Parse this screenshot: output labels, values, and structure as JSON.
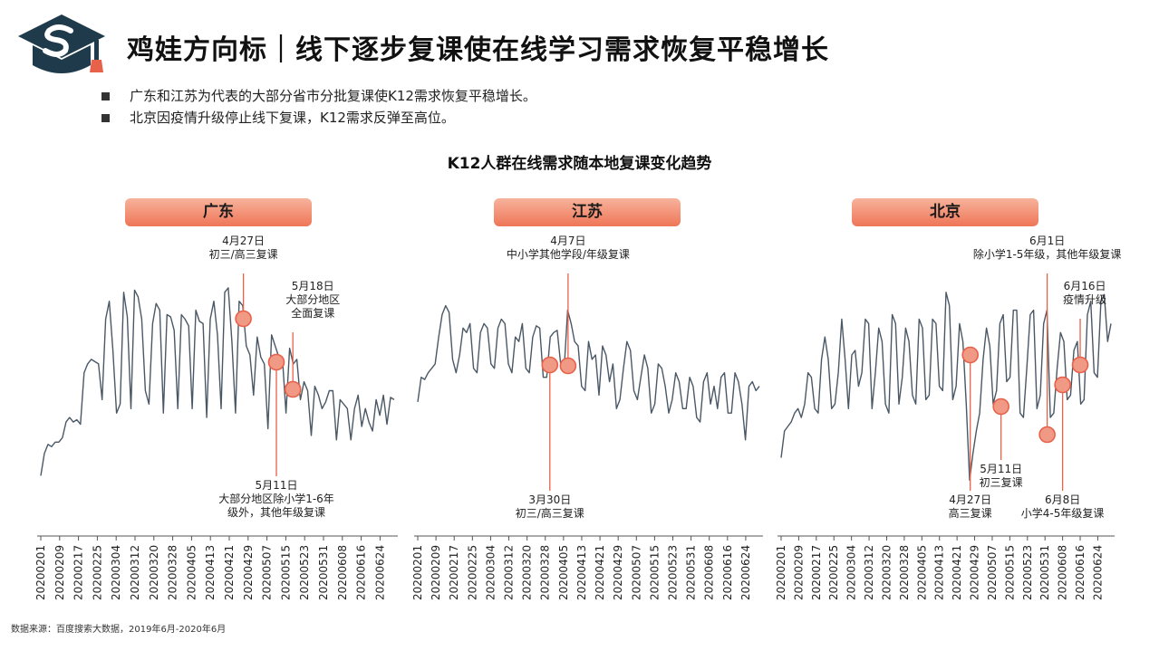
{
  "header": {
    "title": "鸡娃方向标｜线下逐步复课使在线学习需求恢复平稳增长",
    "bullets": [
      "广东和江苏为代表的大部分省市分批复课使K12需求恢复平稳增长。",
      "北京因疫情升级停止线下复课，K12需求反弹至高位。"
    ]
  },
  "source_note": "数据来源：百度搜索大数据，2019年6月-2020年6月",
  "colors": {
    "line": "#4a5866",
    "accent": "#e8614a",
    "marker_fill": "#f09a86",
    "label_gradient": [
      "#f7b39c",
      "#ef7557"
    ]
  },
  "chart_data": {
    "type": "line",
    "title": "K12人群在线需求随本地复课变化趋势",
    "x_ticks": [
      "20200201",
      "20200209",
      "20200217",
      "20200225",
      "20200304",
      "20200312",
      "20200320",
      "20200328",
      "20200405",
      "20200413",
      "20200421",
      "20200429",
      "20200507",
      "20200515",
      "20200523",
      "20200531",
      "20200608",
      "20200616",
      "20200624"
    ],
    "x_range": [
      "20200201",
      "20200630"
    ],
    "grid": false,
    "y_axis_visible": false,
    "panels": [
      {
        "label": "广东",
        "values": [
          12,
          22,
          26,
          25,
          27,
          27,
          29,
          36,
          38,
          36,
          37,
          35,
          58,
          62,
          64,
          63,
          62,
          46,
          82,
          90,
          68,
          40,
          44,
          94,
          83,
          42,
          95,
          92,
          82,
          50,
          44,
          80,
          89,
          86,
          40,
          84,
          83,
          77,
          42,
          84,
          82,
          79,
          42,
          86,
          81,
          80,
          38,
          82,
          90,
          75,
          42,
          94,
          96,
          72,
          40,
          90,
          88,
          70,
          66,
          48,
          74,
          65,
          62,
          33,
          75,
          70,
          65,
          65,
          40,
          69,
          62,
          64,
          46,
          54,
          50,
          30,
          52,
          48,
          42,
          45,
          50,
          50,
          28,
          46,
          44,
          42,
          28,
          42,
          48,
          34,
          42,
          36,
          32,
          46,
          39,
          48,
          35,
          47,
          46
        ],
        "annotations": [
          {
            "date": "20200427",
            "lines": [
              "4月27日",
              "初三/高三复课"
            ],
            "placement": "above"
          },
          {
            "date": "20200511",
            "lines": [
              "5月11日",
              "大部分地区除小学1-6年",
              "级外，其他年级复课"
            ],
            "placement": "below"
          },
          {
            "date": "20200518",
            "lines": [
              "5月18日",
              "大部分地区",
              "全面复课"
            ],
            "placement": "above"
          }
        ]
      },
      {
        "label": "江苏",
        "values": [
          45,
          56,
          55,
          58,
          60,
          62,
          74,
          84,
          88,
          85,
          64,
          58,
          66,
          78,
          76,
          80,
          60,
          58,
          76,
          80,
          78,
          62,
          60,
          78,
          82,
          80,
          62,
          58,
          74,
          72,
          80,
          60,
          58,
          74,
          79,
          78,
          56,
          56,
          74,
          76,
          77,
          62,
          60,
          86,
          80,
          72,
          70,
          52,
          50,
          72,
          64,
          66,
          48,
          70,
          66,
          54,
          62,
          42,
          46,
          60,
          72,
          68,
          50,
          46,
          56,
          66,
          60,
          40,
          44,
          62,
          60,
          52,
          40,
          46,
          58,
          54,
          42,
          42,
          56,
          52,
          38,
          36,
          54,
          58,
          44,
          52,
          42,
          56,
          58,
          40,
          40,
          58,
          54,
          44,
          28,
          52,
          54,
          50,
          52
        ],
        "annotations": [
          {
            "date": "20200330",
            "lines": [
              "3月30日",
              "初三/高三复课"
            ],
            "placement": "below"
          },
          {
            "date": "20200407",
            "lines": [
              "4月7日",
              "中小学其他学段/年级复课"
            ],
            "placement": "above"
          }
        ]
      },
      {
        "label": "北京",
        "values": [
          20,
          32,
          34,
          36,
          40,
          42,
          38,
          44,
          58,
          56,
          42,
          40,
          64,
          74,
          64,
          42,
          44,
          58,
          82,
          64,
          42,
          66,
          68,
          52,
          58,
          82,
          80,
          42,
          58,
          78,
          72,
          44,
          40,
          84,
          80,
          44,
          56,
          78,
          72,
          48,
          44,
          82,
          78,
          46,
          48,
          82,
          80,
          52,
          50,
          94,
          88,
          46,
          52,
          80,
          72,
          44,
          10,
          22,
          32,
          40,
          64,
          78,
          70,
          44,
          50,
          80,
          84,
          54,
          56,
          86,
          86,
          40,
          38,
          60,
          84,
          86,
          42,
          48,
          80,
          86,
          38,
          40,
          60,
          76,
          72,
          46,
          48,
          68,
          72,
          44,
          46,
          84,
          90,
          58,
          56,
          90,
          93,
          72,
          80
        ],
        "annotations": [
          {
            "date": "20200427",
            "lines": [
              "4月27日",
              "高三复课"
            ],
            "placement": "below"
          },
          {
            "date": "20200511",
            "lines": [
              "5月11日",
              "初三复课"
            ],
            "placement": "below"
          },
          {
            "date": "20200601",
            "lines": [
              "6月1日",
              "除小学1-5年级，其他年级复课"
            ],
            "placement": "above"
          },
          {
            "date": "20200608",
            "lines": [
              "6月8日",
              "小学4-5年级复课"
            ],
            "placement": "below"
          },
          {
            "date": "20200616",
            "lines": [
              "6月16日",
              "疫情升级"
            ],
            "placement": "above"
          }
        ]
      }
    ]
  }
}
